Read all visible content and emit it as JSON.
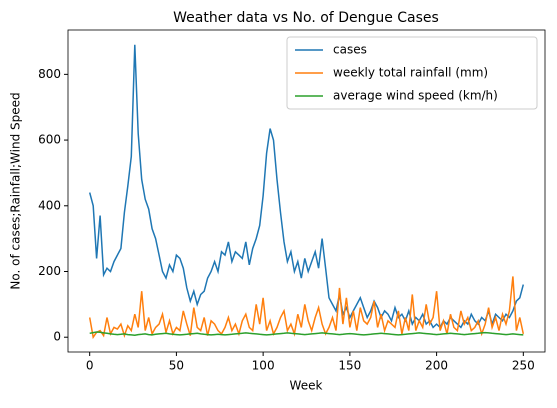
{
  "chart_data": {
    "type": "line",
    "title": "Weather data vs No. of Dengue Cases",
    "xlabel": "Week",
    "ylabel": "No. of cases;Rainfall;Wind Speed",
    "x": [
      0,
      2,
      4,
      6,
      8,
      10,
      12,
      14,
      16,
      18,
      20,
      22,
      24,
      26,
      28,
      30,
      32,
      34,
      36,
      38,
      40,
      42,
      44,
      46,
      48,
      50,
      52,
      54,
      56,
      58,
      60,
      62,
      64,
      66,
      68,
      70,
      72,
      74,
      76,
      78,
      80,
      82,
      84,
      86,
      88,
      90,
      92,
      94,
      96,
      98,
      100,
      102,
      104,
      106,
      108,
      110,
      112,
      114,
      116,
      118,
      120,
      122,
      124,
      126,
      128,
      130,
      132,
      134,
      136,
      138,
      140,
      142,
      144,
      146,
      148,
      150,
      152,
      154,
      156,
      158,
      160,
      162,
      164,
      166,
      168,
      170,
      172,
      174,
      176,
      178,
      180,
      182,
      184,
      186,
      188,
      190,
      192,
      194,
      196,
      198,
      200,
      202,
      204,
      206,
      208,
      210,
      212,
      214,
      216,
      218,
      220,
      222,
      224,
      226,
      228,
      230,
      232,
      234,
      236,
      238,
      240,
      242,
      244,
      246,
      248,
      250
    ],
    "series": [
      {
        "name": "cases",
        "color": "#1f77b4",
        "values": [
          440,
          400,
          240,
          370,
          190,
          210,
          200,
          230,
          250,
          270,
          380,
          460,
          550,
          890,
          620,
          480,
          420,
          390,
          330,
          300,
          250,
          200,
          180,
          220,
          200,
          250,
          240,
          210,
          150,
          110,
          140,
          100,
          130,
          140,
          180,
          200,
          230,
          200,
          260,
          250,
          290,
          230,
          260,
          250,
          240,
          290,
          220,
          270,
          300,
          340,
          430,
          560,
          635,
          600,
          480,
          380,
          290,
          230,
          260,
          200,
          230,
          180,
          240,
          200,
          230,
          260,
          210,
          300,
          210,
          120,
          100,
          80,
          130,
          70,
          90,
          60,
          80,
          100,
          120,
          90,
          60,
          80,
          110,
          90,
          60,
          80,
          70,
          50,
          90,
          60,
          70,
          50,
          80,
          40,
          60,
          50,
          70,
          40,
          50,
          30,
          40,
          30,
          50,
          40,
          60,
          50,
          40,
          30,
          50,
          40,
          70,
          50,
          40,
          60,
          50,
          80,
          40,
          70,
          60,
          50,
          70,
          60,
          80,
          110,
          120,
          160
        ]
      },
      {
        "name": "weekly total rainfall (mm)",
        "color": "#ff7f0e",
        "values": [
          60,
          0,
          15,
          20,
          5,
          60,
          10,
          30,
          25,
          40,
          5,
          35,
          20,
          70,
          30,
          140,
          20,
          60,
          10,
          30,
          40,
          70,
          15,
          50,
          10,
          30,
          20,
          80,
          40,
          5,
          90,
          30,
          20,
          60,
          5,
          50,
          40,
          20,
          10,
          30,
          60,
          20,
          40,
          10,
          50,
          70,
          30,
          20,
          100,
          40,
          120,
          20,
          50,
          10,
          30,
          60,
          80,
          20,
          40,
          10,
          70,
          30,
          100,
          50,
          20,
          60,
          90,
          40,
          10,
          30,
          60,
          20,
          150,
          40,
          120,
          30,
          80,
          20,
          90,
          50,
          40,
          60,
          110,
          30,
          70,
          20,
          50,
          40,
          30,
          80,
          10,
          60,
          20,
          130,
          20,
          50,
          30,
          100,
          40,
          60,
          140,
          20,
          50,
          10,
          70,
          30,
          20,
          80,
          40,
          60,
          20,
          30,
          50,
          10,
          40,
          90,
          30,
          60,
          20,
          70,
          40,
          80,
          185,
          20,
          60,
          10
        ]
      },
      {
        "name": "average wind speed (km/h)",
        "color": "#2ca02c",
        "values": [
          12,
          14,
          16,
          15,
          13,
          12,
          10,
          9,
          8,
          9,
          10,
          8,
          7,
          6,
          8,
          9,
          10,
          8,
          7,
          9,
          10,
          11,
          12,
          10,
          9,
          8,
          7,
          8,
          9,
          10,
          11,
          12,
          10,
          9,
          8,
          7,
          8,
          9,
          8,
          7,
          8,
          9,
          10,
          11,
          12,
          13,
          12,
          11,
          10,
          9,
          8,
          7,
          8,
          9,
          10,
          11,
          12,
          13,
          12,
          11,
          10,
          9,
          8,
          9,
          10,
          11,
          12,
          13,
          12,
          11,
          10,
          9,
          8,
          9,
          10,
          11,
          10,
          9,
          8,
          7,
          8,
          9,
          10,
          11,
          12,
          11,
          10,
          9,
          8,
          7,
          8,
          9,
          10,
          11,
          12,
          13,
          12,
          11,
          10,
          9,
          8,
          9,
          10,
          11,
          12,
          11,
          10,
          9,
          8,
          9,
          10,
          11,
          12,
          13,
          14,
          13,
          12,
          11,
          10,
          9,
          8,
          9,
          10,
          9,
          8,
          7
        ]
      }
    ],
    "xlim": [
      -12.5,
      262.5
    ],
    "ylim": [
      -45,
      935
    ],
    "xticks": [
      0,
      50,
      100,
      150,
      200,
      250
    ],
    "yticks": [
      0,
      200,
      400,
      600,
      800
    ],
    "legend": "upper right"
  }
}
